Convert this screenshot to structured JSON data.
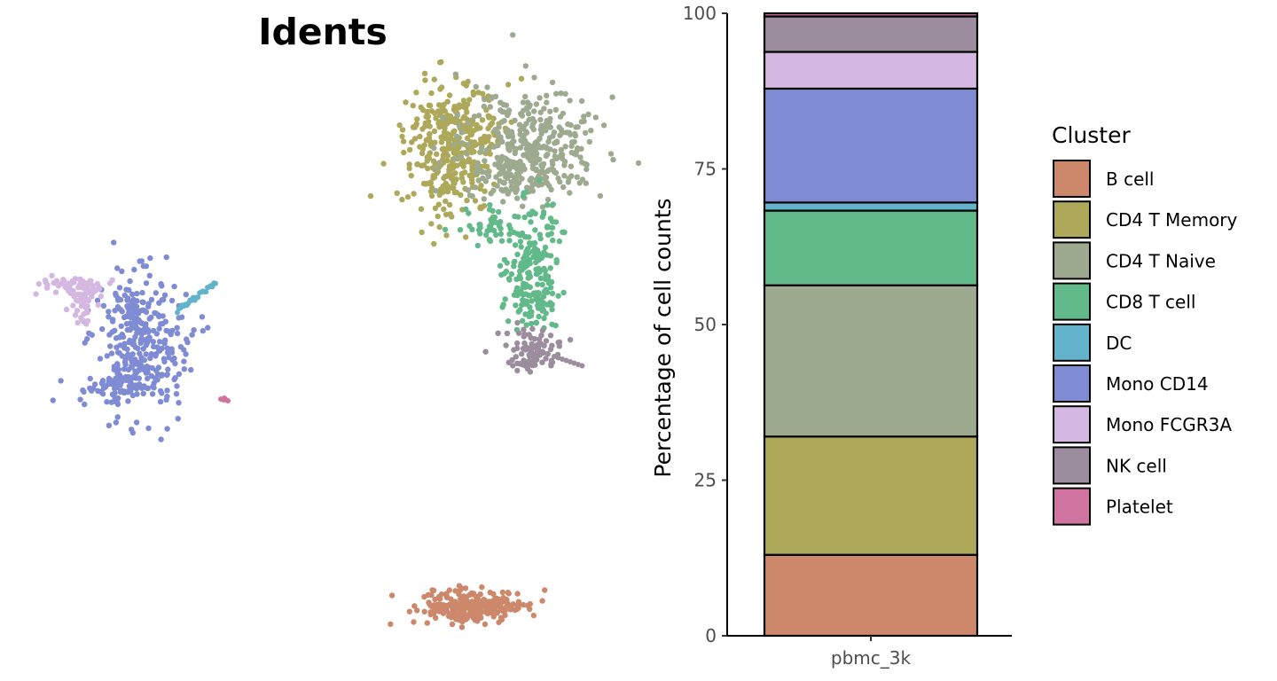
{
  "chart_data": [
    {
      "type": "scatter",
      "title": "Idents",
      "xlabel": "",
      "ylabel": "",
      "note": "UMAP embedding of cells colored by cluster identity; no axes shown",
      "clusters": [
        {
          "name": "B cell",
          "color": "#CD886C"
        },
        {
          "name": "CD4 T Memory",
          "color": "#ADA85A"
        },
        {
          "name": "CD4 T Naive",
          "color": "#9DAA90"
        },
        {
          "name": "CD8 T cell",
          "color": "#62B98A"
        },
        {
          "name": "DC",
          "color": "#62B3CB"
        },
        {
          "name": "Mono CD14",
          "color": "#7F8CD4"
        },
        {
          "name": "Mono FCGR3A",
          "color": "#D5B8E1"
        },
        {
          "name": "NK cell",
          "color": "#9B8C9E"
        },
        {
          "name": "Platelet",
          "color": "#D073A1"
        }
      ]
    },
    {
      "type": "bar",
      "stacked": true,
      "categories": [
        "pbmc_3k"
      ],
      "xlabel": "",
      "ylabel": "Percentage of cell counts",
      "ylim": [
        0,
        100
      ],
      "yticks": [
        0,
        25,
        50,
        75,
        100
      ],
      "legend_title": "Cluster",
      "legend_position": "right",
      "series": [
        {
          "name": "B cell",
          "values": [
            13.0
          ],
          "color": "#CD886C"
        },
        {
          "name": "CD4 T Memory",
          "values": [
            19.0
          ],
          "color": "#ADA85A"
        },
        {
          "name": "CD4 T Naive",
          "values": [
            24.3
          ],
          "color": "#9DAA90"
        },
        {
          "name": "CD8 T cell",
          "values": [
            12.0
          ],
          "color": "#62B98A"
        },
        {
          "name": "DC",
          "values": [
            1.3
          ],
          "color": "#62B3CB"
        },
        {
          "name": "Mono CD14",
          "values": [
            18.3
          ],
          "color": "#7F8CD4"
        },
        {
          "name": "Mono FCGR3A",
          "values": [
            5.9
          ],
          "color": "#D5B8E1"
        },
        {
          "name": "NK cell",
          "values": [
            5.7
          ],
          "color": "#9B8C9E"
        },
        {
          "name": "Platelet",
          "values": [
            0.5
          ],
          "color": "#D073A1"
        }
      ]
    }
  ]
}
